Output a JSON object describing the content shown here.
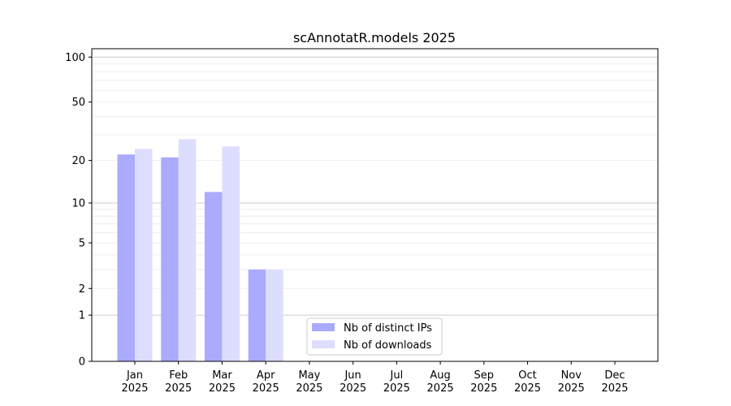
{
  "chart_data": {
    "type": "bar",
    "title": "scAnnotatR.models 2025",
    "xlabel": "",
    "ylabel": "",
    "yscale": "log(1+y)",
    "ylim": [
      0,
      110
    ],
    "yticks": [
      0,
      1,
      2,
      5,
      10,
      20,
      50,
      100
    ],
    "grid": true,
    "legend_position": "bottom-center",
    "categories": [
      "Jan\n2025",
      "Feb\n2025",
      "Mar\n2025",
      "Apr\n2025",
      "May\n2025",
      "Jun\n2025",
      "Jul\n2025",
      "Aug\n2025",
      "Sep\n2025",
      "Oct\n2025",
      "Nov\n2025",
      "Dec\n2025"
    ],
    "series": [
      {
        "name": "Nb of distinct IPs",
        "color": "#aaaaff",
        "values": [
          22,
          21,
          12,
          3,
          0,
          0,
          0,
          0,
          0,
          0,
          0,
          0
        ]
      },
      {
        "name": "Nb of downloads",
        "color": "#ddddff",
        "values": [
          24,
          28,
          25,
          3,
          0,
          0,
          0,
          0,
          0,
          0,
          0,
          0
        ]
      }
    ]
  }
}
